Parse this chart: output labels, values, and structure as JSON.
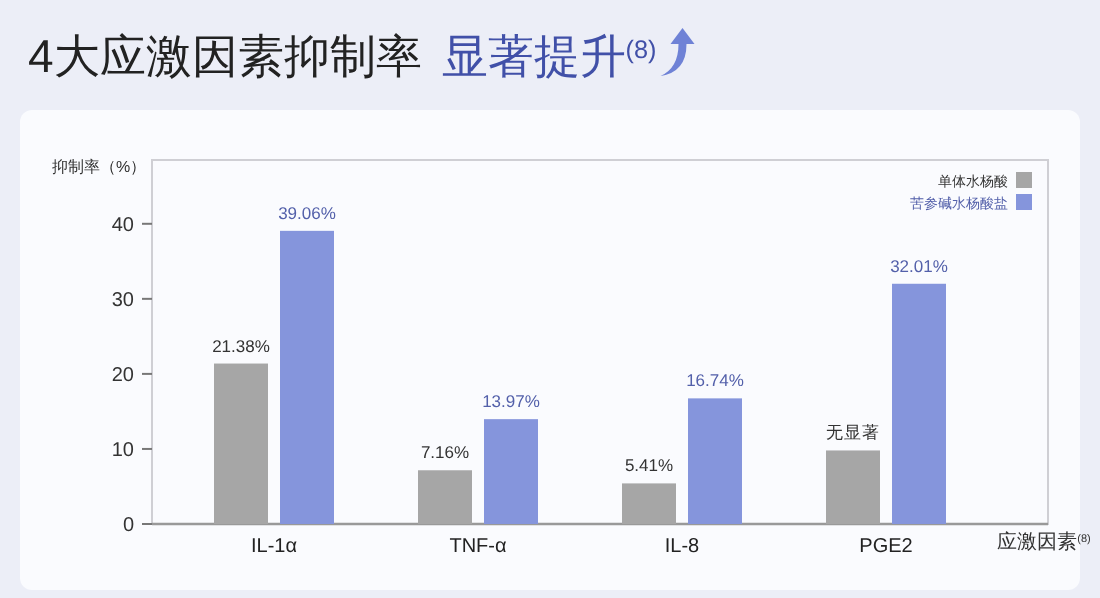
{
  "chart_data": {
    "type": "bar",
    "title": "4大应激因素抑制率",
    "subtitle": "显著提升$^{(8)}$",
    "xlabel": "应激因素$^{(8)}$",
    "ylabel": "抑制率（%）",
    "categories": [
      "IL-1α",
      "TNF-α",
      "IL-8",
      "PGE2"
    ],
    "series": [
      {
        "name": "单体水杨酸",
        "color": "#a6a6a6",
        "values": [
          21.38,
          7.16,
          5.41,
          9.8
        ],
        "value_labels": [
          "21.38%",
          "7.16%",
          "5.41%",
          "无显著"
        ]
      },
      {
        "name": "苦参碱水杨酸盐",
        "color": "#8595dc",
        "values": [
          39.06,
          13.97,
          16.74,
          32.01
        ],
        "value_labels": [
          "39.06%",
          "13.97%",
          "16.74%",
          "32.01%"
        ]
      }
    ],
    "ylim": [
      0,
      48.5
    ],
    "yticks": [
      0,
      10,
      20,
      30,
      40
    ],
    "legend": "top right"
  }
}
